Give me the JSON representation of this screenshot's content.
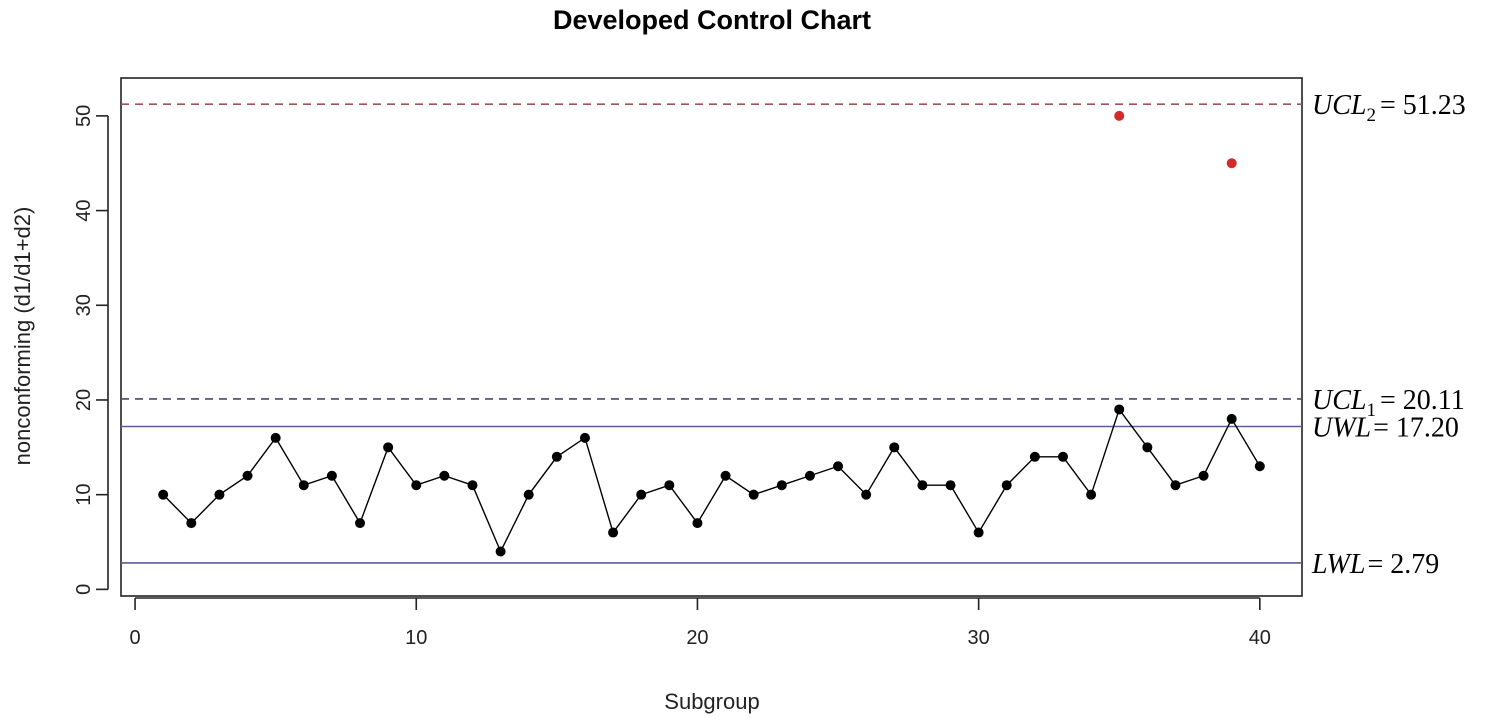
{
  "chart_data": {
    "type": "line",
    "title": "Developed Control Chart",
    "xlabel": "Subgroup",
    "ylabel": "nonconforming (d1/d1+d2)",
    "xlim": [
      -0.5,
      41.5
    ],
    "ylim": [
      -0.7,
      54.0
    ],
    "xticks": [
      0,
      10,
      20,
      30,
      40
    ],
    "yticks": [
      0,
      10,
      20,
      30,
      40,
      50
    ],
    "grid": false,
    "series": [
      {
        "x": [
          1,
          2,
          3,
          4,
          5,
          6,
          7,
          8,
          9,
          10,
          11,
          12,
          13,
          14,
          15,
          16,
          17,
          18,
          19,
          20,
          21,
          22,
          23,
          24,
          25,
          26,
          27,
          28,
          29,
          30,
          31,
          32,
          33,
          34,
          35,
          36,
          37,
          38,
          39,
          40
        ],
        "values": [
          10,
          7,
          10,
          12,
          16,
          11,
          12,
          7,
          15,
          11,
          12,
          11,
          4,
          10,
          14,
          16,
          6,
          10,
          11,
          7,
          12,
          10,
          11,
          12,
          13,
          10,
          15,
          11,
          11,
          6,
          11,
          14,
          14,
          10,
          19,
          15,
          11,
          12,
          18,
          13
        ],
        "color": "#000000"
      },
      {
        "x": [
          35,
          39
        ],
        "values": [
          50,
          45
        ],
        "color": "#d42a2a"
      }
    ],
    "limits": [
      {
        "id": "ucl2",
        "value": 51.23,
        "name": "UCL",
        "sub": "2",
        "value_text": "= 51.23",
        "style": "dashed",
        "color": "#a0525a"
      },
      {
        "id": "ucl1",
        "value": 20.11,
        "name": "UCL",
        "sub": "1",
        "value_text": "= 20.11",
        "style": "dashed",
        "color": "#4a4a66"
      },
      {
        "id": "uwl",
        "value": 17.2,
        "name": "UWL",
        "sub": "",
        "value_text": "= 17.20",
        "style": "solid",
        "color": "#5c5c9a"
      },
      {
        "id": "lwl",
        "value": 2.79,
        "name": "LWL",
        "sub": "",
        "value_text": "= 2.79",
        "style": "solid",
        "color": "#5c5c9a"
      }
    ]
  }
}
